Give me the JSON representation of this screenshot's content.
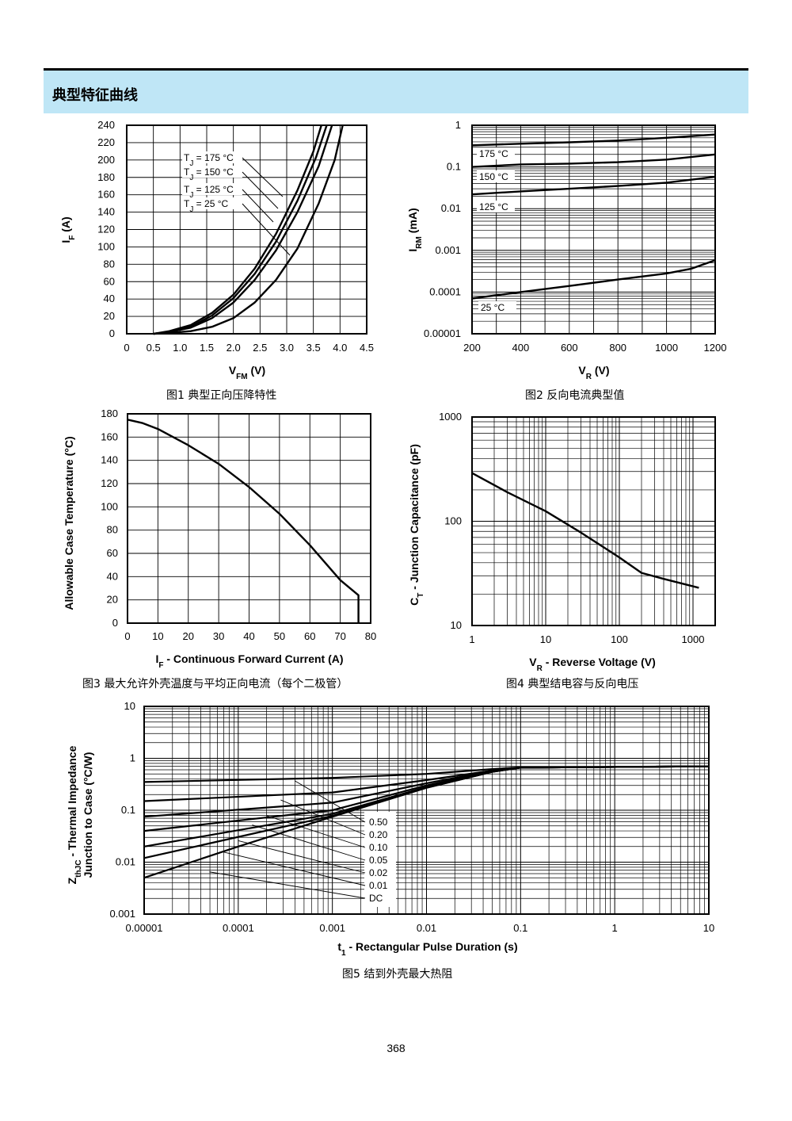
{
  "section_title": "典型特征曲线",
  "page_number": "368",
  "captions": {
    "fig1": "图1  典型正向压降特性",
    "fig2": "图2  反向电流典型值",
    "fig3": "图3  最大允许外壳温度与平均正向电流（每个二极管）",
    "fig4": "图4  典型结电容与反向电压",
    "fig5": "图5  结到外壳最大热阻"
  },
  "chart_data": [
    {
      "id": "fig1",
      "type": "line",
      "xlabel": "VFM (V)",
      "ylabel": "IF (A)",
      "xlim": [
        0,
        4.5
      ],
      "ylim": [
        0,
        240
      ],
      "xticks": [
        "0",
        "0.5",
        "1.0",
        "1.5",
        "2.0",
        "2.5",
        "3.0",
        "3.5",
        "4.0",
        "4.5"
      ],
      "yticks": [
        "0",
        "20",
        "40",
        "60",
        "80",
        "100",
        "120",
        "140",
        "160",
        "180",
        "200",
        "220",
        "240"
      ],
      "grid": true,
      "annotations": [
        "TJ = 175 °C",
        "TJ = 150 °C",
        "TJ = 125 °C",
        "TJ = 25 °C"
      ],
      "series": [
        {
          "name": "TJ = 175 °C",
          "points": [
            [
              0.5,
              0
            ],
            [
              0.8,
              3
            ],
            [
              1.2,
              10
            ],
            [
              1.6,
              24
            ],
            [
              2.0,
              45
            ],
            [
              2.4,
              75
            ],
            [
              2.8,
              115
            ],
            [
              3.2,
              165
            ],
            [
              3.5,
              210
            ],
            [
              3.65,
              240
            ]
          ]
        },
        {
          "name": "TJ = 150 °C",
          "points": [
            [
              0.5,
              0
            ],
            [
              0.8,
              2
            ],
            [
              1.2,
              8
            ],
            [
              1.6,
              21
            ],
            [
              2.0,
              41
            ],
            [
              2.4,
              69
            ],
            [
              2.8,
              106
            ],
            [
              3.2,
              153
            ],
            [
              3.55,
              203
            ],
            [
              3.75,
              240
            ]
          ]
        },
        {
          "name": "TJ = 125 °C",
          "points": [
            [
              0.5,
              0
            ],
            [
              0.8,
              2
            ],
            [
              1.2,
              7
            ],
            [
              1.6,
              18
            ],
            [
              2.0,
              36
            ],
            [
              2.4,
              62
            ],
            [
              2.8,
              96
            ],
            [
              3.2,
              140
            ],
            [
              3.6,
              193
            ],
            [
              3.85,
              240
            ]
          ]
        },
        {
          "name": "TJ = 25 °C",
          "points": [
            [
              0.5,
              0
            ],
            [
              0.8,
              1
            ],
            [
              1.2,
              3
            ],
            [
              1.6,
              8
            ],
            [
              2.0,
              18
            ],
            [
              2.4,
              36
            ],
            [
              2.8,
              62
            ],
            [
              3.2,
              98
            ],
            [
              3.6,
              150
            ],
            [
              3.9,
              200
            ],
            [
              4.05,
              240
            ]
          ]
        }
      ]
    },
    {
      "id": "fig2",
      "type": "line",
      "xlabel": "VR (V)",
      "ylabel": "IRM (mA)",
      "xlim": [
        200,
        1200
      ],
      "ylim": [
        1e-05,
        1
      ],
      "yscale": "log",
      "xticks": [
        "200",
        "400",
        "600",
        "800",
        "1000",
        "1200"
      ],
      "yticks": [
        "0.00001",
        "0.0001",
        "0.001",
        "0.01",
        "0.1",
        "1"
      ],
      "grid": true,
      "annotations": [
        "175 °C",
        "150 °C",
        "125 °C",
        "25 °C"
      ],
      "series": [
        {
          "name": "175 °C",
          "points": [
            [
              200,
              0.33
            ],
            [
              400,
              0.36
            ],
            [
              600,
              0.39
            ],
            [
              800,
              0.43
            ],
            [
              1000,
              0.5
            ],
            [
              1200,
              0.6
            ]
          ]
        },
        {
          "name": "150 °C",
          "points": [
            [
              200,
              0.1
            ],
            [
              400,
              0.115
            ],
            [
              600,
              0.12
            ],
            [
              800,
              0.13
            ],
            [
              1000,
              0.15
            ],
            [
              1200,
              0.2
            ]
          ]
        },
        {
          "name": "125 °C",
          "points": [
            [
              200,
              0.022
            ],
            [
              400,
              0.026
            ],
            [
              600,
              0.03
            ],
            [
              800,
              0.035
            ],
            [
              1000,
              0.042
            ],
            [
              1200,
              0.058
            ]
          ]
        },
        {
          "name": "25 °C",
          "points": [
            [
              200,
              7e-05
            ],
            [
              400,
              0.0001
            ],
            [
              600,
              0.00014
            ],
            [
              800,
              0.0002
            ],
            [
              1000,
              0.00028
            ],
            [
              1100,
              0.00036
            ],
            [
              1200,
              0.00058
            ]
          ]
        }
      ]
    },
    {
      "id": "fig3",
      "type": "line",
      "xlabel": "IF - Continuous Forward Current (A)",
      "ylabel": "Allowable Case Temperature (°C)",
      "xlim": [
        0,
        80
      ],
      "ylim": [
        0,
        180
      ],
      "xticks": [
        "0",
        "10",
        "20",
        "30",
        "40",
        "50",
        "60",
        "70",
        "80"
      ],
      "yticks": [
        "0",
        "20",
        "40",
        "60",
        "80",
        "100",
        "120",
        "140",
        "160",
        "180"
      ],
      "grid": true,
      "series": [
        {
          "points": [
            [
              0,
              175
            ],
            [
              5,
              172
            ],
            [
              10,
              167
            ],
            [
              20,
              153
            ],
            [
              30,
              137
            ],
            [
              40,
              117
            ],
            [
              50,
              94
            ],
            [
              60,
              67
            ],
            [
              70,
              37
            ],
            [
              76,
              24
            ],
            [
              76,
              0
            ]
          ]
        }
      ]
    },
    {
      "id": "fig4",
      "type": "line",
      "xlabel": "VR - Reverse Voltage (V)",
      "ylabel": "CT - Junction Capacitance (pF)",
      "xscale": "log",
      "yscale": "log",
      "xlim": [
        1,
        2000
      ],
      "ylim": [
        10,
        1000
      ],
      "xticks": [
        "1",
        "10",
        "100",
        "1000"
      ],
      "yticks": [
        "10",
        "100",
        "1000"
      ],
      "grid": true,
      "series": [
        {
          "points": [
            [
              1,
              290
            ],
            [
              3,
              190
            ],
            [
              10,
              125
            ],
            [
              30,
              78
            ],
            [
              100,
              45
            ],
            [
              200,
              32
            ],
            [
              400,
              28
            ],
            [
              1200,
              23
            ]
          ]
        }
      ]
    },
    {
      "id": "fig5",
      "type": "line",
      "xlabel": "t1 - Rectangular Pulse Duration (s)",
      "ylabel": "ZthJC - Thermal Impedance Junction to Case (°C/W)",
      "xscale": "log",
      "yscale": "log",
      "xlim": [
        1e-05,
        10
      ],
      "ylim": [
        0.001,
        10
      ],
      "xticks": [
        "0.00001",
        "0.0001",
        "0.001",
        "0.01",
        "0.1",
        "1",
        "10"
      ],
      "yticks": [
        "0.001",
        "0.01",
        "0.1",
        "1",
        "10"
      ],
      "grid": true,
      "legend": [
        "0.50",
        "0.20",
        "0.10",
        "0.05",
        "0.02",
        "0.01",
        "DC"
      ],
      "series": [
        {
          "name": "0.50",
          "points": [
            [
              1e-05,
              0.35
            ],
            [
              0.001,
              0.42
            ],
            [
              0.01,
              0.5
            ],
            [
              0.05,
              0.62
            ],
            [
              0.1,
              0.67
            ],
            [
              10,
              0.7
            ]
          ]
        },
        {
          "name": "0.20",
          "points": [
            [
              1e-05,
              0.15
            ],
            [
              0.001,
              0.22
            ],
            [
              0.01,
              0.38
            ],
            [
              0.05,
              0.58
            ],
            [
              0.1,
              0.66
            ],
            [
              10,
              0.7
            ]
          ]
        },
        {
          "name": "0.10",
          "points": [
            [
              1e-05,
              0.075
            ],
            [
              0.001,
              0.14
            ],
            [
              0.01,
              0.33
            ],
            [
              0.05,
              0.57
            ],
            [
              0.1,
              0.66
            ],
            [
              10,
              0.7
            ]
          ]
        },
        {
          "name": "0.05",
          "points": [
            [
              1e-05,
              0.04
            ],
            [
              0.001,
              0.1
            ],
            [
              0.01,
              0.3
            ],
            [
              0.05,
              0.56
            ],
            [
              0.1,
              0.66
            ],
            [
              10,
              0.7
            ]
          ]
        },
        {
          "name": "0.02",
          "points": [
            [
              1e-05,
              0.02
            ],
            [
              0.001,
              0.085
            ],
            [
              0.01,
              0.28
            ],
            [
              0.05,
              0.55
            ],
            [
              0.1,
              0.66
            ],
            [
              10,
              0.7
            ]
          ]
        },
        {
          "name": "0.01",
          "points": [
            [
              1e-05,
              0.012
            ],
            [
              0.001,
              0.078
            ],
            [
              0.01,
              0.27
            ],
            [
              0.05,
              0.55
            ],
            [
              0.1,
              0.66
            ],
            [
              10,
              0.7
            ]
          ]
        },
        {
          "name": "DC",
          "points": [
            [
              1e-05,
              0.005
            ],
            [
              0.0001,
              0.02
            ],
            [
              0.001,
              0.075
            ],
            [
              0.01,
              0.27
            ],
            [
              0.05,
              0.55
            ],
            [
              0.1,
              0.66
            ],
            [
              10,
              0.7
            ]
          ]
        }
      ]
    }
  ]
}
